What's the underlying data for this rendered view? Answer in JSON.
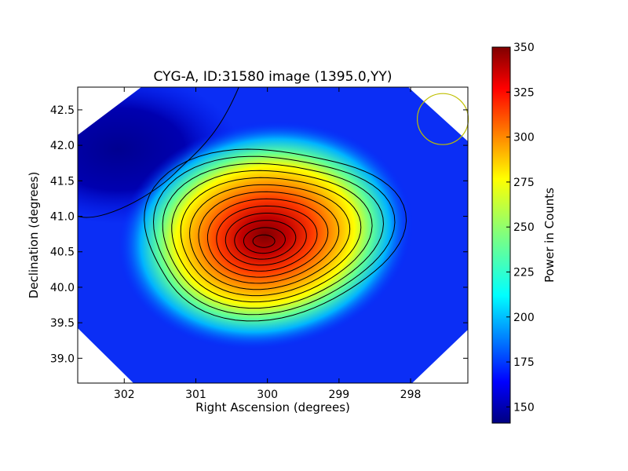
{
  "chart_data": {
    "type": "heatmap",
    "title": "CYG-A, ID:31580 image (1395.0,YY)",
    "xlabel": "Right Ascension (degrees)",
    "ylabel": "Declination (degrees)",
    "xlim": [
      302.65,
      297.2
    ],
    "ylim": [
      38.65,
      42.82
    ],
    "xticks": [
      302,
      301,
      300,
      299,
      298
    ],
    "xtick_labels": [
      "302",
      "301",
      "300",
      "299",
      "298"
    ],
    "yticks": [
      39.0,
      39.5,
      40.0,
      40.5,
      41.0,
      41.5,
      42.0,
      42.5
    ],
    "ytick_labels": [
      "39.0",
      "39.5",
      "40.0",
      "40.5",
      "41.0",
      "41.5",
      "42.0",
      "42.5"
    ],
    "colormap": "jet",
    "colorbar": {
      "label": "Power in Counts",
      "range": [
        141,
        350
      ],
      "ticks": [
        150,
        175,
        200,
        225,
        250,
        275,
        300,
        325,
        350
      ],
      "tick_labels": [
        "150",
        "175",
        "200",
        "225",
        "250",
        "275",
        "300",
        "325",
        "350"
      ]
    },
    "background_level": 168,
    "peak": {
      "ra": 300.05,
      "dec": 40.65,
      "value": 345
    },
    "low_region": {
      "ra": 302.3,
      "dec": 41.8,
      "value": 144
    },
    "contour_levels": [
      158,
      178,
      195,
      210,
      222,
      234,
      246,
      258,
      270,
      282,
      294,
      306,
      318,
      330
    ],
    "beam_marker": {
      "ra": 297.55,
      "dec": 42.37,
      "radius_deg": 0.36,
      "color": "#bfbf00"
    }
  }
}
